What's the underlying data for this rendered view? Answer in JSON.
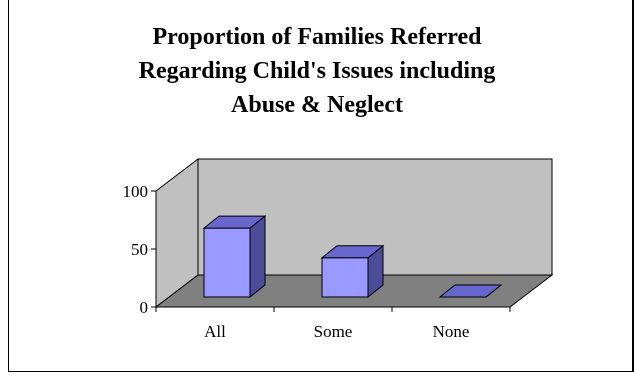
{
  "chart_data": {
    "type": "bar",
    "style": "3d",
    "title_lines": [
      "Proportion of Families Referred",
      "Regarding Child's Issues including",
      "Abuse & Neglect"
    ],
    "categories": [
      "All",
      "Some",
      "None"
    ],
    "values": [
      65,
      37,
      0
    ],
    "ylim": [
      0,
      100
    ],
    "yticks": [
      "0",
      "50",
      "100"
    ],
    "xlabel": "",
    "ylabel": "",
    "grid": false,
    "legend": "none",
    "colors": {
      "bar_front": "#9999ff",
      "bar_top": "#6666cc",
      "bar_side": "#4c4c99",
      "back_wall": "#c0c0c0",
      "floor": "#808080"
    }
  }
}
